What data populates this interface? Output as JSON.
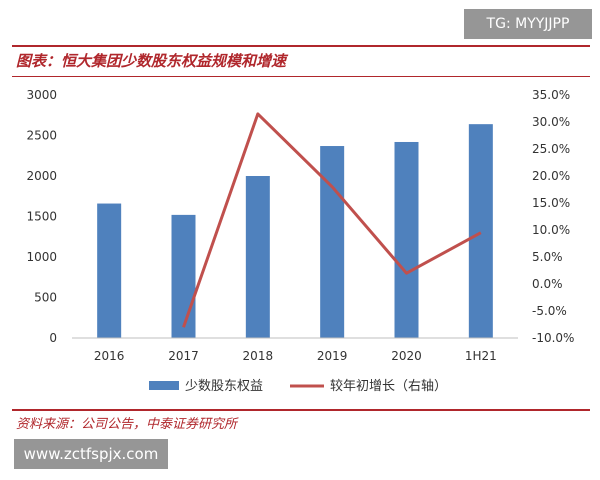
{
  "header": {
    "title": "图表：恒大集团少数股东权益规模和增速"
  },
  "footer": {
    "source": "资料来源：公司公告，中泰证券研究所"
  },
  "watermarks": {
    "top": "TG: MYYJJPP",
    "bottom": "www.zctfspjx.com"
  },
  "colors": {
    "bar": "#4f81bd",
    "line": "#c0504d",
    "accent": "#b0272c"
  },
  "chart_data": {
    "type": "bar",
    "title": "",
    "xlabel": "",
    "ylabel": "",
    "categories": [
      "2016",
      "2017",
      "2018",
      "2019",
      "2020",
      "1H21"
    ],
    "series": [
      {
        "name": "少数股东权益",
        "type": "bar",
        "axis": "left",
        "values": [
          1660,
          1520,
          2000,
          2370,
          2420,
          2640
        ]
      },
      {
        "name": "较年初增长（右轴）",
        "type": "line",
        "axis": "right",
        "values": [
          null,
          -0.08,
          0.315,
          0.18,
          0.02,
          0.095
        ]
      }
    ],
    "ylim": [
      0,
      3000
    ],
    "y_ticks": [
      "0",
      "500",
      "1000",
      "1500",
      "2000",
      "2500",
      "3000"
    ],
    "y2lim": [
      -0.1,
      0.35
    ],
    "y2_ticks": [
      "-10.0%",
      "-5.0%",
      "0.0%",
      "5.0%",
      "10.0%",
      "15.0%",
      "20.0%",
      "25.0%",
      "30.0%",
      "35.0%"
    ],
    "grid": false,
    "legend": "bottom"
  }
}
